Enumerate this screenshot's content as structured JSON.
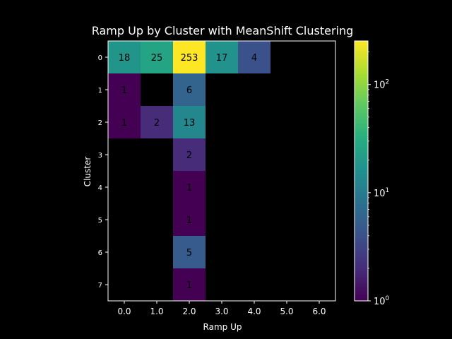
{
  "chart_data": {
    "type": "heatmap",
    "title": "Ramp Up by Cluster with MeanShift Clustering",
    "xlabel": "Ramp Up",
    "ylabel": "Cluster",
    "x_categories": [
      "0.0",
      "1.0",
      "2.0",
      "3.0",
      "4.0",
      "5.0",
      "6.0"
    ],
    "y_categories": [
      "0",
      "1",
      "2",
      "3",
      "4",
      "5",
      "6",
      "7"
    ],
    "values": [
      [
        18,
        25,
        253,
        17,
        4,
        null,
        null
      ],
      [
        1,
        null,
        6,
        null,
        null,
        null,
        null
      ],
      [
        1,
        2,
        13,
        null,
        null,
        null,
        null
      ],
      [
        null,
        null,
        2,
        null,
        null,
        null,
        null
      ],
      [
        null,
        null,
        1,
        null,
        null,
        null,
        null
      ],
      [
        null,
        null,
        1,
        null,
        null,
        null,
        null
      ],
      [
        null,
        null,
        5,
        null,
        null,
        null,
        null
      ],
      [
        null,
        null,
        1,
        null,
        null,
        null,
        null
      ]
    ],
    "colormap": "viridis",
    "color_scale": "log",
    "color_range": [
      1,
      253
    ],
    "colorbar_ticks": [
      {
        "base": "10",
        "exp": "0",
        "value": 1
      },
      {
        "base": "10",
        "exp": "1",
        "value": 10
      },
      {
        "base": "10",
        "exp": "2",
        "value": 100
      }
    ],
    "background": "#000000",
    "text_color": "#ffffff",
    "cell_label_color": "#000000"
  }
}
